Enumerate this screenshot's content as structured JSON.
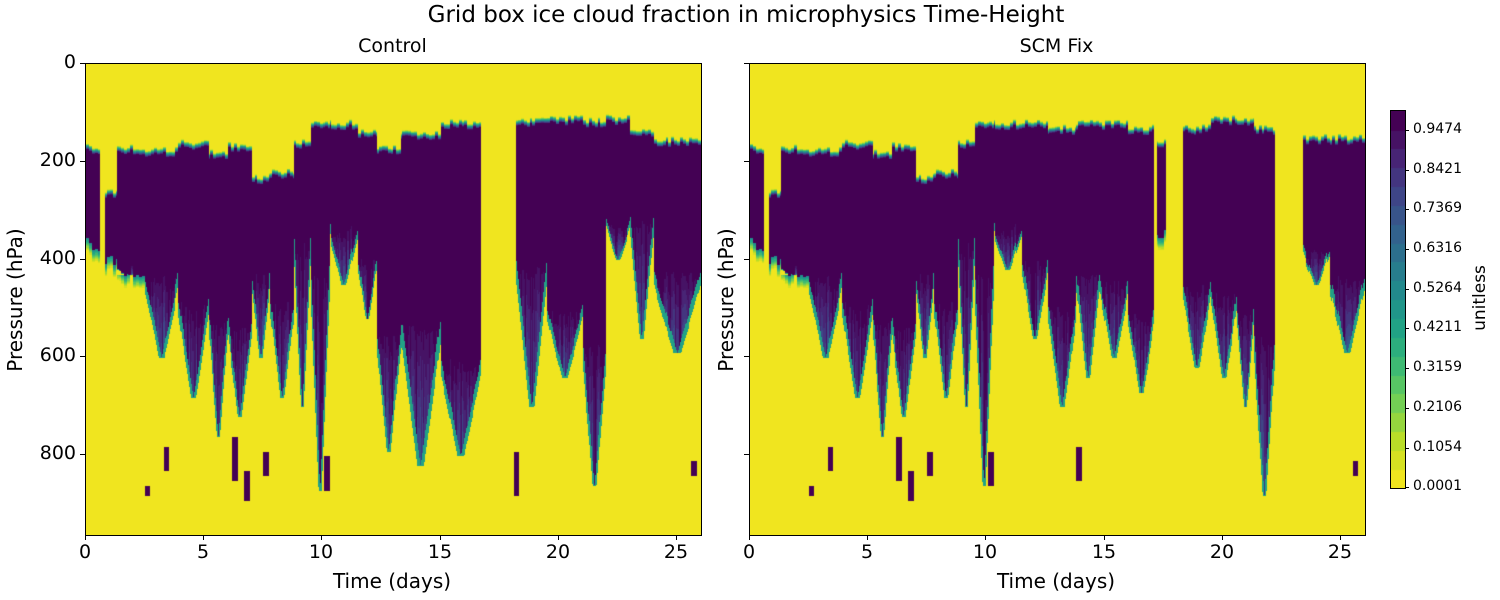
{
  "suptitle": "Grid box ice cloud fraction in microphysics Time-Height",
  "colors": {
    "background_low": "#f0e51f",
    "high": "#440154",
    "axis": "#000000"
  },
  "chart_data": [
    {
      "type": "heatmap",
      "title": "Control",
      "xlabel": "Time (days)",
      "ylabel": "Pressure (hPa)",
      "xlim": [
        0,
        26
      ],
      "ylim": [
        960,
        0
      ],
      "xticks": [
        0,
        5,
        10,
        15,
        20,
        25
      ],
      "yticks": [
        0,
        200,
        400,
        600,
        800
      ],
      "colormap": "viridis_r",
      "description": "Cloud fraction ~1 (dark purple) in upper troposphere plumes 130-400 hPa extending downward to ~850 hPa; otherwise ~0 (yellow). Clear gaps near day 17-18.3.",
      "plumes": [
        {
          "t0": 0.0,
          "t1": 0.6,
          "top": 180,
          "bot": 370
        },
        {
          "t0": 0.8,
          "t1": 1.3,
          "top": 270,
          "bot": 400
        },
        {
          "t0": 1.3,
          "t1": 2.5,
          "top": 180,
          "bot": 420,
          "tail": 430
        },
        {
          "t0": 2.5,
          "t1": 3.9,
          "top": 185,
          "bot": 430,
          "tail": 600
        },
        {
          "t0": 3.9,
          "t1": 5.2,
          "top": 170,
          "bot": 480,
          "tail": 680
        },
        {
          "t0": 5.2,
          "t1": 6.0,
          "top": 190,
          "bot": 500,
          "tail": 760
        },
        {
          "t0": 6.0,
          "t1": 7.0,
          "top": 175,
          "bot": 520,
          "tail": 720
        },
        {
          "t0": 7.0,
          "t1": 7.8,
          "top": 240,
          "bot": 420,
          "tail": 600
        },
        {
          "t0": 7.8,
          "t1": 8.8,
          "top": 230,
          "bot": 480,
          "tail": 680
        },
        {
          "t0": 8.8,
          "t1": 9.5,
          "top": 170,
          "bot": 350,
          "tail": 700
        },
        {
          "t0": 9.5,
          "t1": 10.3,
          "top": 130,
          "bot": 400,
          "tail": 870
        },
        {
          "t0": 10.3,
          "t1": 11.5,
          "top": 130,
          "bot": 330,
          "tail": 450
        },
        {
          "t0": 11.5,
          "t1": 12.3,
          "top": 150,
          "bot": 400,
          "tail": 520
        },
        {
          "t0": 12.3,
          "t1": 13.3,
          "top": 180,
          "bot": 540,
          "tail": 790
        },
        {
          "t0": 13.3,
          "t1": 15.0,
          "top": 150,
          "bot": 510,
          "tail": 820
        },
        {
          "t0": 15.0,
          "t1": 16.7,
          "top": 130,
          "bot": 600,
          "tail": 800
        },
        {
          "t0": 18.2,
          "t1": 19.5,
          "top": 125,
          "bot": 400,
          "tail": 700
        },
        {
          "t0": 19.5,
          "t1": 21.0,
          "top": 120,
          "bot": 500,
          "tail": 640
        },
        {
          "t0": 21.0,
          "t1": 22.0,
          "top": 125,
          "bot": 560,
          "tail": 860
        },
        {
          "t0": 22.0,
          "t1": 23.0,
          "top": 120,
          "bot": 330,
          "tail": 400
        },
        {
          "t0": 23.0,
          "t1": 24.0,
          "top": 145,
          "bot": 300,
          "tail": 560
        },
        {
          "t0": 24.0,
          "t1": 26.0,
          "top": 165,
          "bot": 420,
          "tail": 590
        }
      ],
      "low_features": [
        {
          "t": 2.6,
          "p0": 860,
          "p1": 880
        },
        {
          "t": 3.4,
          "p0": 780,
          "p1": 830
        },
        {
          "t": 6.3,
          "p0": 760,
          "p1": 850
        },
        {
          "t": 6.8,
          "p0": 830,
          "p1": 890
        },
        {
          "t": 7.6,
          "p0": 790,
          "p1": 840
        },
        {
          "t": 10.2,
          "p0": 800,
          "p1": 870
        },
        {
          "t": 18.2,
          "p0": 790,
          "p1": 880
        },
        {
          "t": 25.7,
          "p0": 810,
          "p1": 840
        }
      ]
    },
    {
      "type": "heatmap",
      "title": "SCM Fix",
      "xlabel": "Time (days)",
      "ylabel": "Pressure (hPa)",
      "xlim": [
        0,
        26
      ],
      "ylim": [
        960,
        0
      ],
      "xticks": [
        0,
        5,
        10,
        15,
        20,
        25
      ],
      "yticks": [
        0,
        200,
        400,
        600,
        800
      ],
      "colormap": "viridis_r",
      "description": "Similar structure to Control; gaps near day 17.2-18.3 and 22.4-23.4; deep plume near day 21-22 reaching ~880 hPa.",
      "plumes": [
        {
          "t0": 0.0,
          "t1": 0.6,
          "top": 180,
          "bot": 370
        },
        {
          "t0": 0.8,
          "t1": 1.3,
          "top": 270,
          "bot": 400
        },
        {
          "t0": 1.3,
          "t1": 2.5,
          "top": 180,
          "bot": 420,
          "tail": 430
        },
        {
          "t0": 2.5,
          "t1": 3.9,
          "top": 185,
          "bot": 430,
          "tail": 600
        },
        {
          "t0": 3.9,
          "t1": 5.2,
          "top": 170,
          "bot": 480,
          "tail": 680
        },
        {
          "t0": 5.2,
          "t1": 6.0,
          "top": 190,
          "bot": 500,
          "tail": 760
        },
        {
          "t0": 6.0,
          "t1": 7.0,
          "top": 175,
          "bot": 520,
          "tail": 720
        },
        {
          "t0": 7.0,
          "t1": 7.8,
          "top": 240,
          "bot": 420,
          "tail": 600
        },
        {
          "t0": 7.8,
          "t1": 8.8,
          "top": 230,
          "bot": 480,
          "tail": 680
        },
        {
          "t0": 8.8,
          "t1": 9.5,
          "top": 170,
          "bot": 350,
          "tail": 700
        },
        {
          "t0": 9.5,
          "t1": 10.3,
          "top": 130,
          "bot": 400,
          "tail": 860
        },
        {
          "t0": 10.3,
          "t1": 11.5,
          "top": 130,
          "bot": 330,
          "tail": 420
        },
        {
          "t0": 11.5,
          "t1": 12.6,
          "top": 130,
          "bot": 400,
          "tail": 560
        },
        {
          "t0": 12.6,
          "t1": 13.8,
          "top": 140,
          "bot": 480,
          "tail": 700
        },
        {
          "t0": 13.8,
          "t1": 14.8,
          "top": 130,
          "bot": 420,
          "tail": 640
        },
        {
          "t0": 14.8,
          "t1": 16.0,
          "top": 130,
          "bot": 440,
          "tail": 600
        },
        {
          "t0": 16.0,
          "t1": 17.1,
          "top": 140,
          "bot": 500,
          "tail": 670
        },
        {
          "t0": 17.2,
          "t1": 17.6,
          "top": 165,
          "bot": 340
        },
        {
          "t0": 18.3,
          "t1": 19.5,
          "top": 140,
          "bot": 450,
          "tail": 620
        },
        {
          "t0": 19.5,
          "t1": 20.6,
          "top": 120,
          "bot": 460,
          "tail": 640
        },
        {
          "t0": 20.6,
          "t1": 21.3,
          "top": 125,
          "bot": 500,
          "tail": 700
        },
        {
          "t0": 21.3,
          "t1": 22.2,
          "top": 140,
          "bot": 540,
          "tail": 880
        },
        {
          "t0": 23.4,
          "t1": 24.5,
          "top": 160,
          "bot": 380,
          "tail": 450
        },
        {
          "t0": 24.5,
          "t1": 26.0,
          "top": 160,
          "bot": 430,
          "tail": 590
        }
      ],
      "low_features": [
        {
          "t": 2.6,
          "p0": 860,
          "p1": 880
        },
        {
          "t": 3.4,
          "p0": 780,
          "p1": 830
        },
        {
          "t": 6.3,
          "p0": 760,
          "p1": 850
        },
        {
          "t": 6.8,
          "p0": 830,
          "p1": 890
        },
        {
          "t": 7.6,
          "p0": 790,
          "p1": 840
        },
        {
          "t": 10.2,
          "p0": 790,
          "p1": 860
        },
        {
          "t": 13.9,
          "p0": 780,
          "p1": 850
        },
        {
          "t": 25.6,
          "p0": 810,
          "p1": 840
        }
      ]
    }
  ],
  "colorbar": {
    "label": "unitless",
    "min": 0.0001,
    "max": 1.0,
    "levels": 20,
    "ticks": [
      "0.0001",
      "0.1054",
      "0.2106",
      "0.3159",
      "0.4211",
      "0.5264",
      "0.6316",
      "0.7369",
      "0.8421",
      "0.9474"
    ]
  },
  "axes": {
    "left": {
      "title": "Control",
      "xlabel": "Time (days)",
      "ylabel": "Pressure (hPa)",
      "yticks": [
        "0",
        "200",
        "400",
        "600",
        "800"
      ],
      "xticks": [
        "0",
        "5",
        "10",
        "15",
        "20",
        "25"
      ]
    },
    "right": {
      "title": "SCM Fix",
      "xlabel": "Time (days)",
      "ylabel": "Pressure (hPa)",
      "xticks": [
        "0",
        "5",
        "10",
        "15",
        "20",
        "25"
      ]
    }
  }
}
